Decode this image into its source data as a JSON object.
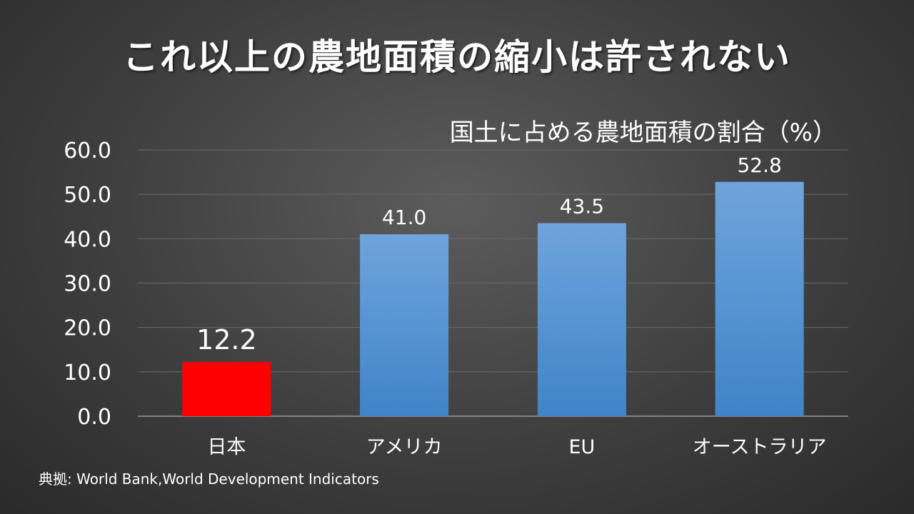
{
  "slide": {
    "title": "これ以上の農地面積の縮小は許されない",
    "source": "典拠: World Bank,World Development Indicators"
  },
  "chart_data": {
    "type": "bar",
    "title": "国土に占める農地面積の割合（%）",
    "categories": [
      "日本",
      "アメリカ",
      "EU",
      "オーストラリア"
    ],
    "values": [
      12.2,
      41.0,
      43.5,
      52.8
    ],
    "value_labels": [
      "12.2",
      "41.0",
      "43.5",
      "52.8"
    ],
    "highlight_index": 0,
    "colors": {
      "highlight": "#ff0000",
      "bar_top": "#6fa4dc",
      "bar_bottom": "#3f84c8",
      "grid": "#6a6a6a"
    },
    "ylim": [
      0,
      60
    ],
    "yticks": [
      "0.0",
      "10.0",
      "20.0",
      "30.0",
      "40.0",
      "50.0",
      "60.0"
    ],
    "grid": true,
    "legend": "none",
    "xlabel": "",
    "ylabel": ""
  }
}
